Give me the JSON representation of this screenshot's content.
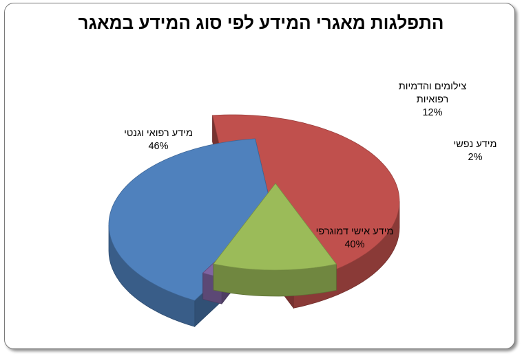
{
  "chart_data": {
    "type": "pie",
    "title": "התפלגות מאגרי המידע לפי סוג המידע במאגר",
    "slices": [
      {
        "label": "מידע רפואי וגנטי",
        "value": 46,
        "pct_label": "46%",
        "color": "#c0504d",
        "exploded": true
      },
      {
        "label": "צילומים והדמיות רפואיות",
        "label_lines": [
          "צילומים והדמיות",
          "רפואיות"
        ],
        "value": 12,
        "pct_label": "12%",
        "color": "#9bbb59",
        "exploded": true
      },
      {
        "label": "מידע נפשי",
        "value": 2,
        "pct_label": "2%",
        "color": "#8064a2",
        "exploded": true
      },
      {
        "label": "מידע אישי דמוגרפי",
        "value": 40,
        "pct_label": "40%",
        "color": "#4f81bd",
        "exploded": true
      }
    ],
    "three_d": true,
    "legend": "none"
  }
}
